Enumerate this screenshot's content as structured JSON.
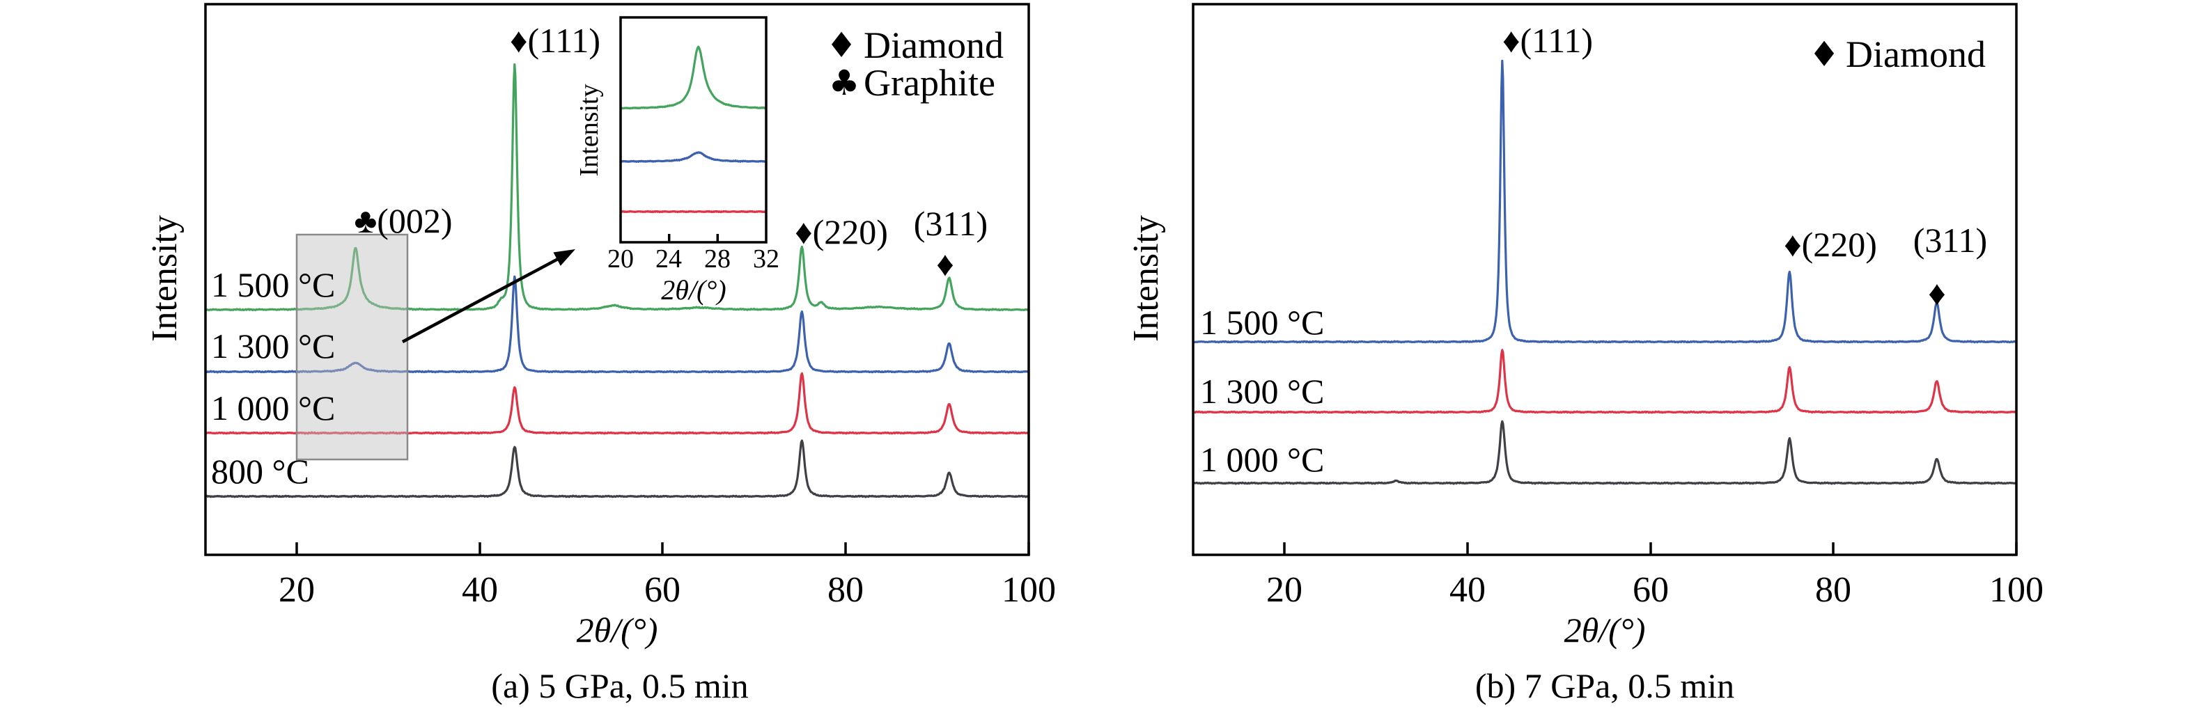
{
  "chart_data": [
    {
      "type": "line",
      "panel": "a",
      "title": "(a) 5 GPa, 0.5 min",
      "xlabel": "2θ/(°)",
      "ylabel": "Intensity",
      "xlim": [
        10,
        100
      ],
      "x_ticks": [
        20,
        40,
        60,
        80,
        100
      ],
      "grid": false,
      "legend_position": "top-right",
      "legend": [
        {
          "symbol": "♦",
          "label": "Diamond"
        },
        {
          "symbol": "♣",
          "label": "Graphite"
        }
      ],
      "annotations": [
        {
          "text": "♦(111)",
          "two_theta": 43.8
        },
        {
          "text": "♣(002)",
          "two_theta": 26.4
        },
        {
          "text": "♦(220)",
          "two_theta": 75.2
        },
        {
          "text": "(311)",
          "two_theta": 91.3
        },
        {
          "text": "♦",
          "two_theta": 91.3
        }
      ],
      "highlight_region": {
        "two_theta_range": [
          20,
          32
        ],
        "note": "shaded band magnified in inset"
      },
      "series": [
        {
          "name": "1 500 °C",
          "color": "#44a45e",
          "offset": 445,
          "noise": 0.9,
          "peaks": [
            {
              "two_theta": 26.4,
              "intensity": 76,
              "hwhm": 0.5,
              "exp": 1.25
            },
            {
              "two_theta": 26.7,
              "intensity": 14,
              "hwhm": 1.4,
              "exp": 1.0
            },
            {
              "two_theta": 42.3,
              "intensity": 9,
              "hwhm": 0.5,
              "exp": 1.3
            },
            {
              "two_theta": 43.8,
              "intensity": 352,
              "hwhm": 0.4,
              "exp": 1.45
            },
            {
              "two_theta": 54.6,
              "intensity": 6,
              "hwhm": 1.2,
              "exp": 1.0
            },
            {
              "two_theta": 64.0,
              "intensity": 3,
              "hwhm": 2.0,
              "exp": 1.0
            },
            {
              "two_theta": 75.2,
              "intensity": 90,
              "hwhm": 0.45,
              "exp": 1.4
            },
            {
              "two_theta": 77.3,
              "intensity": 9,
              "hwhm": 0.5,
              "exp": 1.2
            },
            {
              "two_theta": 83.5,
              "intensity": 4,
              "hwhm": 2.5,
              "exp": 1.0
            },
            {
              "two_theta": 91.3,
              "intensity": 45,
              "hwhm": 0.5,
              "exp": 1.35
            }
          ]
        },
        {
          "name": "1 300 °C",
          "color": "#3c61ad",
          "offset": 534,
          "noise": 0.9,
          "peaks": [
            {
              "two_theta": 26.4,
              "intensity": 13,
              "hwhm": 0.9,
              "exp": 1.1
            },
            {
              "two_theta": 43.8,
              "intensity": 137,
              "hwhm": 0.42,
              "exp": 1.45
            },
            {
              "two_theta": 75.2,
              "intensity": 87,
              "hwhm": 0.45,
              "exp": 1.4
            },
            {
              "two_theta": 91.3,
              "intensity": 41,
              "hwhm": 0.5,
              "exp": 1.35
            }
          ]
        },
        {
          "name": "1 000 °C",
          "color": "#dd3447",
          "offset": 622,
          "noise": 0.9,
          "peaks": [
            {
              "two_theta": 43.8,
              "intensity": 66,
              "hwhm": 0.45,
              "exp": 1.4
            },
            {
              "two_theta": 75.2,
              "intensity": 86,
              "hwhm": 0.45,
              "exp": 1.4
            },
            {
              "two_theta": 91.3,
              "intensity": 42,
              "hwhm": 0.5,
              "exp": 1.35
            }
          ]
        },
        {
          "name": "800 °C",
          "color": "#3f3f46",
          "offset": 713,
          "noise": 0.9,
          "peaks": [
            {
              "two_theta": 43.8,
              "intensity": 71,
              "hwhm": 0.48,
              "exp": 1.4
            },
            {
              "two_theta": 75.2,
              "intensity": 80,
              "hwhm": 0.45,
              "exp": 1.4
            },
            {
              "two_theta": 91.3,
              "intensity": 34,
              "hwhm": 0.5,
              "exp": 1.35
            }
          ]
        }
      ]
    },
    {
      "type": "line",
      "panel": "b",
      "title": "(b) 7 GPa, 0.5 min",
      "xlabel": "2θ/(°)",
      "ylabel": "Intensity",
      "xlim": [
        10,
        100
      ],
      "x_ticks": [
        20,
        40,
        60,
        80,
        100
      ],
      "grid": false,
      "legend_position": "top-right",
      "legend": [
        {
          "symbol": "♦",
          "label": "Diamond"
        }
      ],
      "annotations": [
        {
          "text": "♦(111)",
          "two_theta": 43.8
        },
        {
          "text": "♦(220)",
          "two_theta": 75.2
        },
        {
          "text": "(311)",
          "two_theta": 91.3
        },
        {
          "text": "♦",
          "two_theta": 91.3
        }
      ],
      "series": [
        {
          "name": "1 500 °C",
          "color": "#3c61ad",
          "offset": 491,
          "noise": 0.9,
          "peaks": [
            {
              "two_theta": 43.8,
              "intensity": 404,
              "hwhm": 0.34,
              "exp": 1.5
            },
            {
              "two_theta": 75.2,
              "intensity": 101,
              "hwhm": 0.42,
              "exp": 1.4
            },
            {
              "two_theta": 91.3,
              "intensity": 56,
              "hwhm": 0.46,
              "exp": 1.35
            }
          ]
        },
        {
          "name": "1 300 °C",
          "color": "#dd3447",
          "offset": 592,
          "noise": 0.9,
          "peaks": [
            {
              "two_theta": 43.8,
              "intensity": 90,
              "hwhm": 0.4,
              "exp": 1.45
            },
            {
              "two_theta": 75.2,
              "intensity": 65,
              "hwhm": 0.42,
              "exp": 1.4
            },
            {
              "two_theta": 91.3,
              "intensity": 45,
              "hwhm": 0.46,
              "exp": 1.35
            }
          ]
        },
        {
          "name": "1 000 °C",
          "color": "#3f3f46",
          "offset": 694,
          "noise": 0.9,
          "peaks": [
            {
              "two_theta": 32.2,
              "intensity": 4,
              "hwhm": 0.3,
              "exp": 1.0
            },
            {
              "two_theta": 43.8,
              "intensity": 89,
              "hwhm": 0.44,
              "exp": 1.45
            },
            {
              "two_theta": 75.2,
              "intensity": 64,
              "hwhm": 0.44,
              "exp": 1.4
            },
            {
              "two_theta": 91.3,
              "intensity": 35,
              "hwhm": 0.48,
              "exp": 1.35
            }
          ]
        }
      ]
    },
    {
      "type": "line",
      "panel": "inset",
      "title": "",
      "xlabel": "2θ/(°)",
      "ylabel": "Intensity",
      "xlim": [
        20,
        32
      ],
      "x_ticks": [
        20,
        24,
        28,
        32
      ],
      "grid": false,
      "series": [
        {
          "name": "1 500 °C",
          "color": "#44a45e",
          "offset": 156,
          "noise": 0.7,
          "peaks": [
            {
              "two_theta": 26.4,
              "intensity": 77,
              "hwhm": 0.55,
              "exp": 1.2
            },
            {
              "two_theta": 26.9,
              "intensity": 14,
              "hwhm": 1.1,
              "exp": 1.0
            }
          ]
        },
        {
          "name": "1 300 °C",
          "color": "#3c61ad",
          "offset": 232,
          "noise": 0.7,
          "peaks": [
            {
              "two_theta": 26.4,
              "intensity": 13,
              "hwhm": 0.8,
              "exp": 1.1
            }
          ]
        },
        {
          "name": "1 000 °C",
          "color": "#dd3447",
          "offset": 304,
          "noise": 0.7,
          "peaks": []
        }
      ]
    }
  ]
}
